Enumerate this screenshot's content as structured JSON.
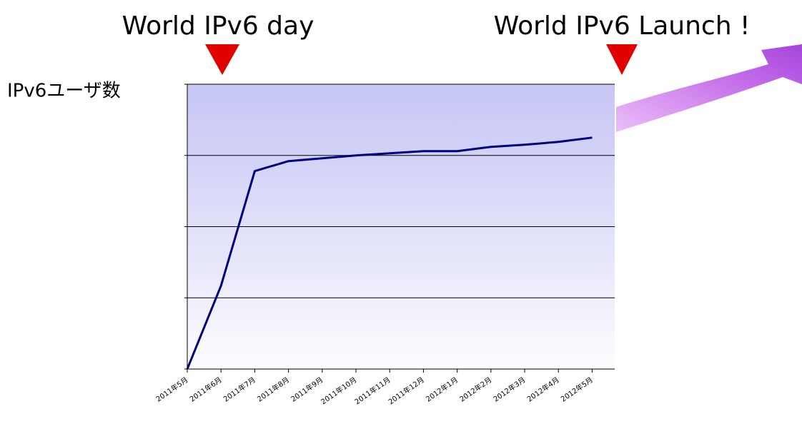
{
  "chart_data": {
    "type": "line",
    "annotations": [
      "World IPv6 day",
      "World IPv6 Launch !"
    ],
    "y_label": "IPv6ユーザ数",
    "categories": [
      "2011年5月",
      "2011年6月",
      "2011年7月",
      "2011年8月",
      "2011年9月",
      "2011年10月",
      "2011年11月",
      "2011年12月",
      "2012年1月",
      "2012年2月",
      "2012年3月",
      "2012年4月",
      "2012年5月"
    ],
    "values": [
      0,
      1.17,
      2.78,
      2.92,
      2.96,
      3.0,
      3.03,
      3.06,
      3.06,
      3.12,
      3.15,
      3.19,
      3.25
    ],
    "color": "#000080",
    "ylim": [
      0,
      4
    ],
    "yticks": [
      0,
      1,
      2,
      3,
      4
    ],
    "grid": true
  }
}
